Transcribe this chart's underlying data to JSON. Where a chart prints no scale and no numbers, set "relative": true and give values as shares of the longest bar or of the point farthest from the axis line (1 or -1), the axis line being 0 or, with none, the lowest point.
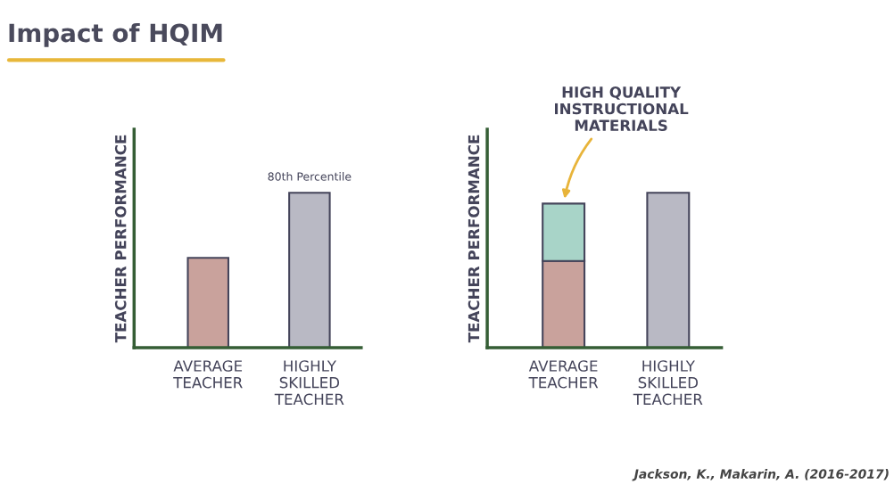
{
  "chart_data": [
    {
      "type": "bar",
      "title": "Impact of HQIM",
      "relative": true,
      "ylabel": "TEACHER PERFORMANCE",
      "categories": [
        "AVERAGE\nTEACHER",
        "HIGHLY\nSKILLED\nTEACHER"
      ],
      "series": [
        {
          "values": [
            0.58,
            1
          ],
          "colors": [
            "#c9a29c",
            "#b9b9c4"
          ]
        }
      ],
      "annotations": [
        {
          "text": "80th Percentile",
          "x": "HIGHLY\nSKILLED\nTEACHER",
          "y": 1
        }
      ]
    },
    {
      "type": "bar",
      "relative": true,
      "stacked": true,
      "ylabel": "TEACHER PERFORMANCE",
      "categories": [
        "AVERAGE\nTEACHER",
        "HIGHLY\nSKILLED\nTEACHER"
      ],
      "series": [
        {
          "values": [
            0.56,
            1
          ],
          "colors": [
            "#c9a29c",
            "#b9b9c4"
          ]
        },
        {
          "values": [
            0.37,
            null
          ],
          "color": "#a8d4c8"
        }
      ],
      "annotations": [
        {
          "text": "HIGH QUALITY\nINSTRUCTIONAL\nMATERIALS",
          "x": "AVERAGE\nTEACHER",
          "y": 0.93
        },
        "Jackson, K., Makarin, A. (2016-2017)"
      ]
    }
  ]
}
